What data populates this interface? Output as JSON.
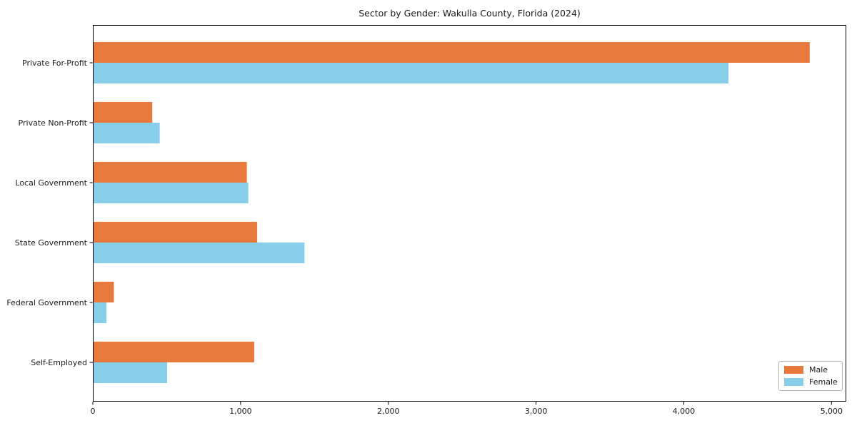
{
  "figure": {
    "background": "#ffffff"
  },
  "chart_data": {
    "type": "bar",
    "orientation": "horizontal",
    "title": "Sector by Gender: Wakulla County, Florida (2024)",
    "categories": [
      "Private For-Profit",
      "Private Non-Profit",
      "Local Government",
      "State Government",
      "Federal Government",
      "Self-Employed"
    ],
    "series": [
      {
        "name": "Male",
        "color": "#e8793d",
        "values": [
          4850,
          400,
          1040,
          1110,
          140,
          1090
        ]
      },
      {
        "name": "Female",
        "color": "#87ceeb",
        "values": [
          4300,
          450,
          1050,
          1430,
          90,
          500
        ]
      }
    ],
    "xlabel": "",
    "ylabel": "",
    "xlim": [
      0,
      5100
    ],
    "xticks": [
      0,
      1000,
      2000,
      3000,
      4000,
      5000
    ],
    "xtick_labels": [
      "0",
      "1,000",
      "2,000",
      "3,000",
      "4,000",
      "5,000"
    ],
    "grid": false,
    "legend_position": "lower right",
    "axis_color": "#000000",
    "text_color": "#1a1a1a"
  }
}
